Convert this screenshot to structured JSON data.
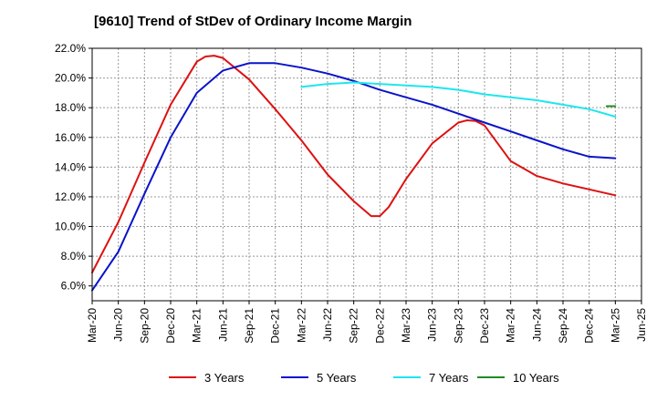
{
  "chart_data": {
    "type": "line",
    "title": "[9610]  Trend of StDev of Ordinary Income Margin",
    "xlabel": "",
    "ylabel": "",
    "x_ticks": [
      "Mar-20",
      "Jun-20",
      "Sep-20",
      "Dec-20",
      "Mar-21",
      "Jun-21",
      "Sep-21",
      "Dec-21",
      "Mar-22",
      "Jun-22",
      "Sep-22",
      "Dec-22",
      "Mar-23",
      "Jun-23",
      "Sep-23",
      "Dec-23",
      "Mar-24",
      "Jun-24",
      "Sep-24",
      "Dec-24",
      "Mar-25",
      "Jun-25"
    ],
    "y_ticks": [
      "6.0%",
      "8.0%",
      "10.0%",
      "12.0%",
      "14.0%",
      "16.0%",
      "18.0%",
      "20.0%",
      "22.0%"
    ],
    "ylim": [
      5.0,
      22.0
    ],
    "grid": true,
    "legend_position": "bottom",
    "series": [
      {
        "name": "3 Years",
        "color": "#dd1111",
        "points": [
          [
            "Mar-20",
            6.9
          ],
          [
            "Jun-20",
            10.3
          ],
          [
            "Sep-20",
            14.3
          ],
          [
            "Dec-20",
            18.2
          ],
          [
            "Mar-21",
            21.1
          ],
          [
            "Apr-21",
            21.45
          ],
          [
            "May-21",
            21.5
          ],
          [
            "Jun-21",
            21.35
          ],
          [
            "Sep-21",
            19.9
          ],
          [
            "Dec-21",
            17.9
          ],
          [
            "Mar-22",
            15.8
          ],
          [
            "Jun-22",
            13.5
          ],
          [
            "Sep-22",
            11.7
          ],
          [
            "Nov-22",
            10.7
          ],
          [
            "Dec-22",
            10.7
          ],
          [
            "Jan-23",
            11.3
          ],
          [
            "Mar-23",
            13.2
          ],
          [
            "Jun-23",
            15.6
          ],
          [
            "Sep-23",
            17.0
          ],
          [
            "Oct-23",
            17.15
          ],
          [
            "Nov-23",
            17.1
          ],
          [
            "Dec-23",
            16.8
          ],
          [
            "Mar-24",
            14.4
          ],
          [
            "Jun-24",
            13.4
          ],
          [
            "Sep-24",
            12.9
          ],
          [
            "Dec-24",
            12.5
          ],
          [
            "Mar-25",
            12.1
          ]
        ]
      },
      {
        "name": "5 Years",
        "color": "#0a14c8",
        "points": [
          [
            "Mar-20",
            5.7
          ],
          [
            "Jun-20",
            8.3
          ],
          [
            "Sep-20",
            12.2
          ],
          [
            "Dec-20",
            16.0
          ],
          [
            "Mar-21",
            19.0
          ],
          [
            "Jun-21",
            20.5
          ],
          [
            "Sep-21",
            21.0
          ],
          [
            "Dec-21",
            21.0
          ],
          [
            "Mar-22",
            20.7
          ],
          [
            "Jun-22",
            20.3
          ],
          [
            "Sep-22",
            19.8
          ],
          [
            "Dec-22",
            19.2
          ],
          [
            "Mar-23",
            18.7
          ],
          [
            "Jun-23",
            18.2
          ],
          [
            "Sep-23",
            17.6
          ],
          [
            "Dec-23",
            17.0
          ],
          [
            "Mar-24",
            16.4
          ],
          [
            "Jun-24",
            15.8
          ],
          [
            "Sep-24",
            15.2
          ],
          [
            "Dec-24",
            14.7
          ],
          [
            "Mar-25",
            14.6
          ]
        ]
      },
      {
        "name": "7 Years",
        "color": "#1ee6ee",
        "points": [
          [
            "Mar-22",
            19.4
          ],
          [
            "Jun-22",
            19.6
          ],
          [
            "Sep-22",
            19.7
          ],
          [
            "Dec-22",
            19.6
          ],
          [
            "Mar-23",
            19.5
          ],
          [
            "Jun-23",
            19.4
          ],
          [
            "Sep-23",
            19.2
          ],
          [
            "Dec-23",
            18.9
          ],
          [
            "Mar-24",
            18.7
          ],
          [
            "Jun-24",
            18.5
          ],
          [
            "Sep-24",
            18.2
          ],
          [
            "Dec-24",
            17.9
          ],
          [
            "Mar-25",
            17.4
          ]
        ]
      },
      {
        "name": "10 Years",
        "color": "#228b22",
        "points": [
          [
            "Feb-25",
            18.1
          ],
          [
            "Mar-25",
            18.1
          ]
        ]
      }
    ]
  }
}
